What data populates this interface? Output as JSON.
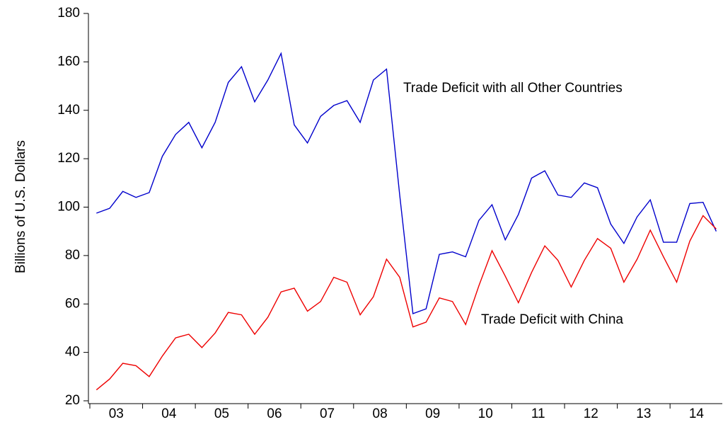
{
  "chart_data": {
    "type": "line",
    "y_label": "Billions of U.S. Dollars",
    "categories": [
      null,
      "03",
      null,
      null,
      null,
      "04",
      null,
      null,
      null,
      "05",
      null,
      null,
      null,
      "06",
      null,
      null,
      null,
      "07",
      null,
      null,
      null,
      "08",
      null,
      null,
      null,
      "09",
      null,
      null,
      null,
      "10",
      null,
      null,
      null,
      "11",
      null,
      null,
      null,
      "12",
      null,
      null,
      null,
      "13",
      null,
      null,
      null,
      "14",
      null,
      null
    ],
    "series": [
      {
        "name": "Trade Deficit with all Other Countries",
        "color": "#0000cc",
        "values": [
          97.5,
          99.5,
          106.5,
          104,
          106,
          121,
          130,
          135,
          124.5,
          135,
          151.5,
          158,
          143.5,
          152.5,
          163.5,
          134,
          126.5,
          137.5,
          142,
          144,
          135,
          152.5,
          157,
          105,
          56,
          58,
          80.5,
          81.5,
          79.5,
          94.5,
          101,
          86.5,
          97,
          112,
          115,
          105,
          104,
          110,
          108,
          93,
          85,
          96,
          103,
          85.5,
          85.5,
          101.5,
          102,
          90
        ]
      },
      {
        "name": "Trade Deficit with China",
        "color": "#ee0000",
        "values": [
          24.5,
          29,
          35.5,
          34.5,
          30,
          38.5,
          46,
          47.5,
          42,
          48,
          56.5,
          55.5,
          47.5,
          54.5,
          65,
          66.5,
          57,
          61,
          71,
          69,
          55.5,
          63,
          78.5,
          71,
          50.5,
          52.5,
          62.5,
          61,
          51.5,
          67.5,
          82,
          71.5,
          60.5,
          73,
          84,
          78,
          67,
          78,
          87,
          83,
          69,
          78.5,
          90.5,
          79.5,
          69,
          86,
          96.5,
          91
        ]
      }
    ],
    "ylim": [
      20,
      180
    ],
    "yticks": [
      20,
      40,
      60,
      80,
      100,
      120,
      140,
      160,
      180
    ],
    "grid": false
  }
}
